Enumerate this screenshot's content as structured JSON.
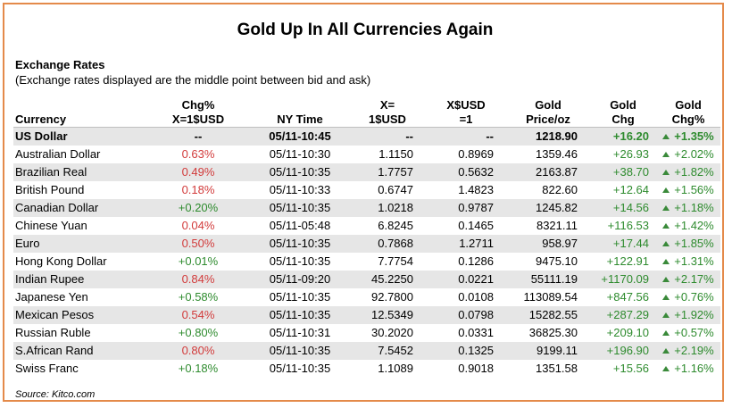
{
  "title": "Gold Up In All Currencies Again",
  "section": {
    "heading": "Exchange Rates",
    "note": "(Exchange rates displayed are the middle point between bid and ask)"
  },
  "columns": {
    "currency": "Currency",
    "chg_l1": "Chg%",
    "chg_l2": "X=1$USD",
    "time": "NY Time",
    "x_l1": "X=",
    "x_l2": "1$USD",
    "xusd_l1": "X$USD",
    "xusd_l2": "=1",
    "price_l1": "Gold",
    "price_l2": "Price/oz",
    "gchg_l1": "Gold",
    "gchg_l2": "Chg",
    "gpct_l1": "Gold",
    "gpct_l2": "Chg%"
  },
  "rows": [
    {
      "currency": "US Dollar",
      "chg": "--",
      "time": "05/11-10:45",
      "x": "--",
      "xusd": "--",
      "price": "1218.90",
      "gchg": "+16.20",
      "gpct": "+1.35%"
    },
    {
      "currency": "Australian Dollar",
      "chg": "0.63%",
      "time": "05/11-10:30",
      "x": "1.1150",
      "xusd": "0.8969",
      "price": "1359.46",
      "gchg": "+26.93",
      "gpct": "+2.02%"
    },
    {
      "currency": "Brazilian Real",
      "chg": "0.49%",
      "time": "05/11-10:35",
      "x": "1.7757",
      "xusd": "0.5632",
      "price": "2163.87",
      "gchg": "+38.70",
      "gpct": "+1.82%"
    },
    {
      "currency": "British Pound",
      "chg": "0.18%",
      "time": "05/11-10:33",
      "x": "0.6747",
      "xusd": "1.4823",
      "price": "822.60",
      "gchg": "+12.64",
      "gpct": "+1.56%"
    },
    {
      "currency": "Canadian Dollar",
      "chg": "+0.20%",
      "time": "05/11-10:35",
      "x": "1.0218",
      "xusd": "0.9787",
      "price": "1245.82",
      "gchg": "+14.56",
      "gpct": "+1.18%"
    },
    {
      "currency": "Chinese Yuan",
      "chg": "0.04%",
      "time": "05/11-05:48",
      "x": "6.8245",
      "xusd": "0.1465",
      "price": "8321.11",
      "gchg": "+116.53",
      "gpct": "+1.42%"
    },
    {
      "currency": "Euro",
      "chg": "0.50%",
      "time": "05/11-10:35",
      "x": "0.7868",
      "xusd": "1.2711",
      "price": "958.97",
      "gchg": "+17.44",
      "gpct": "+1.85%"
    },
    {
      "currency": "Hong Kong Dollar",
      "chg": "+0.01%",
      "time": "05/11-10:35",
      "x": "7.7754",
      "xusd": "0.1286",
      "price": "9475.10",
      "gchg": "+122.91",
      "gpct": "+1.31%"
    },
    {
      "currency": "Indian Rupee",
      "chg": "0.84%",
      "time": "05/11-09:20",
      "x": "45.2250",
      "xusd": "0.0221",
      "price": "55111.19",
      "gchg": "+1170.09",
      "gpct": "+2.17%"
    },
    {
      "currency": "Japanese Yen",
      "chg": "+0.58%",
      "time": "05/11-10:35",
      "x": "92.7800",
      "xusd": "0.0108",
      "price": "113089.54",
      "gchg": "+847.56",
      "gpct": "+0.76%"
    },
    {
      "currency": "Mexican Pesos",
      "chg": "0.54%",
      "time": "05/11-10:35",
      "x": "12.5349",
      "xusd": "0.0798",
      "price": "15282.55",
      "gchg": "+287.29",
      "gpct": "+1.92%"
    },
    {
      "currency": "Russian Ruble",
      "chg": "+0.80%",
      "time": "05/11-10:31",
      "x": "30.2020",
      "xusd": "0.0331",
      "price": "36825.30",
      "gchg": "+209.10",
      "gpct": "+0.57%"
    },
    {
      "currency": "S.African Rand",
      "chg": "0.80%",
      "time": "05/11-10:35",
      "x": "7.5452",
      "xusd": "0.1325",
      "price": "9199.11",
      "gchg": "+196.90",
      "gpct": "+2.19%"
    },
    {
      "currency": "Swiss Franc",
      "chg": "+0.18%",
      "time": "05/11-10:35",
      "x": "1.1089",
      "xusd": "0.9018",
      "price": "1351.58",
      "gchg": "+15.56",
      "gpct": "+1.16%"
    }
  ],
  "source": "Source: Kitco.com",
  "colors": {
    "border": "#e48a4a",
    "positive": "#2e8b2e",
    "negative": "#d23b3b",
    "shade": "#e6e6e6"
  },
  "icons": {
    "gain": "up-triangle-icon"
  }
}
